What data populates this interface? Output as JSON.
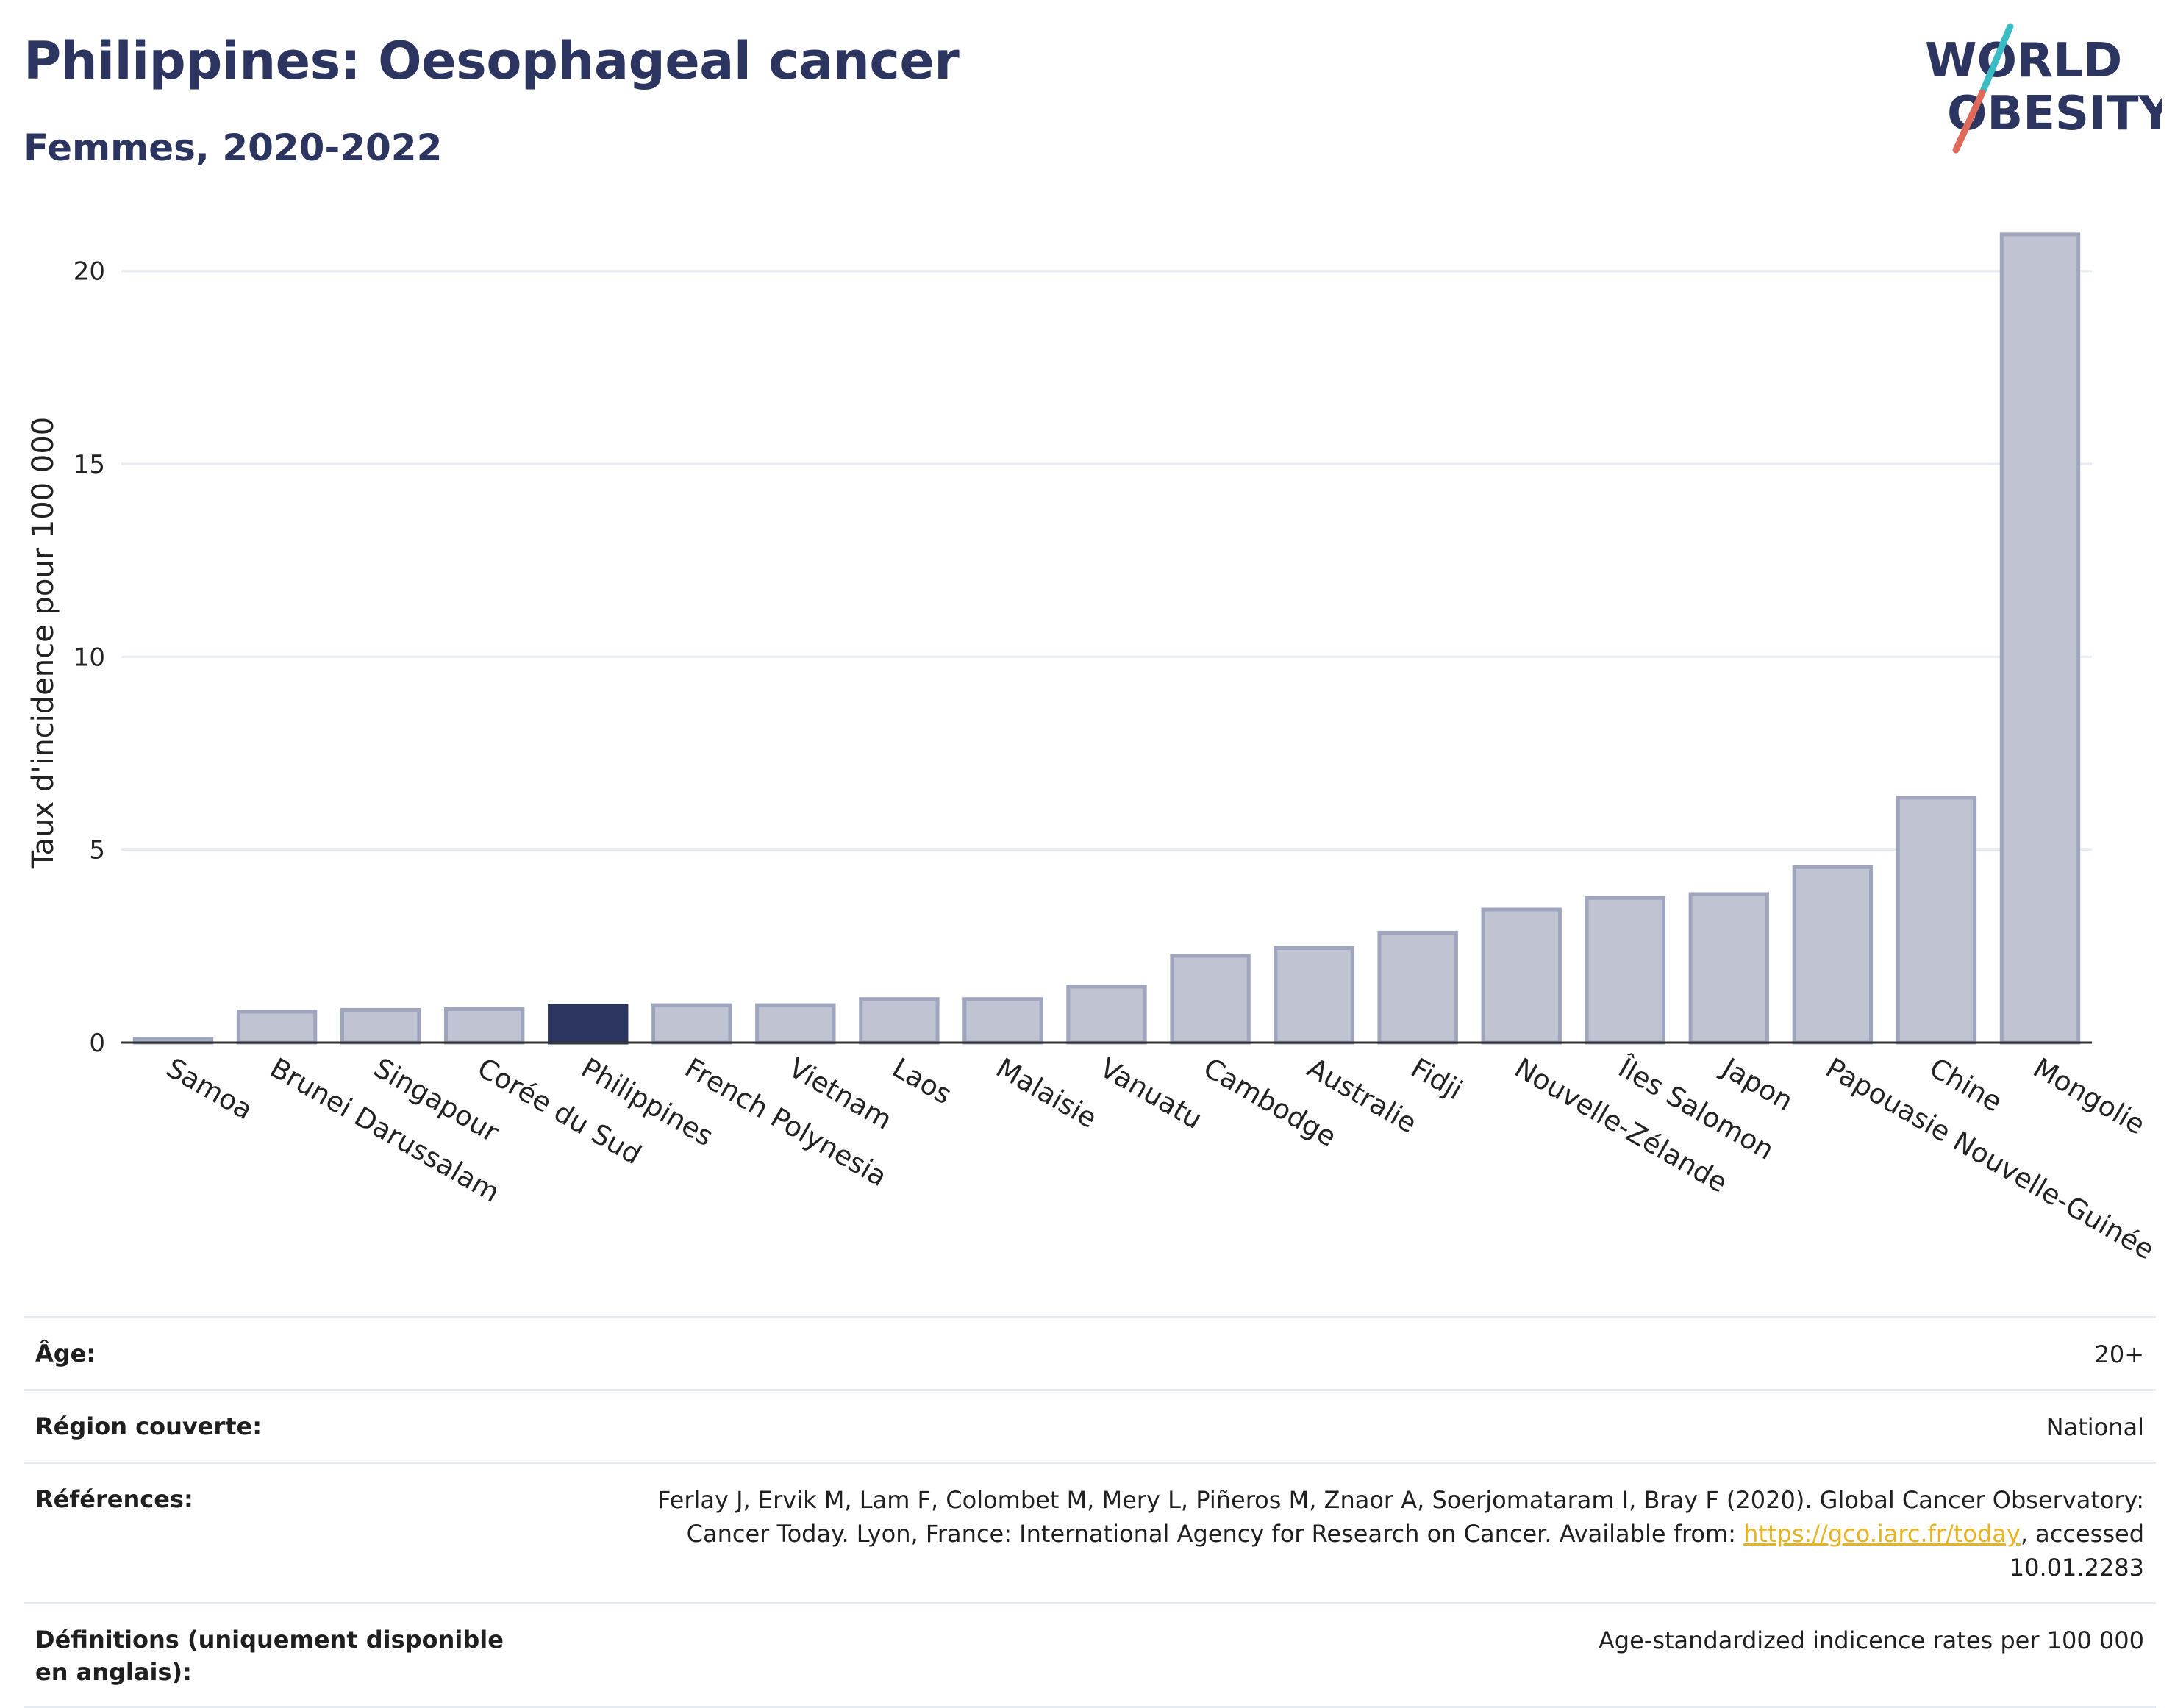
{
  "header": {
    "title": "Philippines: Oesophageal cancer",
    "subtitle": "Femmes, 2020-2022",
    "logo_text_1": "WORLD",
    "logo_text_2": "OBESITY"
  },
  "colors": {
    "title": "#2b3560",
    "bar_default": "#bfc3d2",
    "bar_default_stroke": "#9fa5bd",
    "bar_highlight": "#2b3560",
    "grid": "#e6ebf2",
    "link": "#e6b422",
    "logo_slash_teal": "#3bbcc4",
    "logo_slash_red": "#e06a5a"
  },
  "chart_data": {
    "type": "bar",
    "title": "Philippines: Oesophageal cancer",
    "subtitle": "Femmes, 2020-2022",
    "xlabel": "",
    "ylabel": "Taux d'incidence pour 100 000",
    "ylim": [
      0,
      21.5
    ],
    "yticks": [
      0,
      5,
      10,
      15,
      20
    ],
    "grid": true,
    "highlight": "Philippines",
    "categories": [
      "Samoa",
      "Brunei Darussalam",
      "Singapour",
      "Corée du Sud",
      "Philippines",
      "French Polynesia",
      "Vietnam",
      "Laos",
      "Malaisie",
      "Vanuatu",
      "Cambodge",
      "Australie",
      "Fidji",
      "Nouvelle-Zélande",
      "Îles Salomon",
      "Japon",
      "Papouasie Nouvelle-Guinée",
      "Chine",
      "Mongolie"
    ],
    "values": [
      0.1,
      0.8,
      0.85,
      0.87,
      0.95,
      0.97,
      0.97,
      1.13,
      1.13,
      1.45,
      2.25,
      2.45,
      2.85,
      3.45,
      3.75,
      3.85,
      4.55,
      6.35,
      20.95
    ]
  },
  "meta": [
    {
      "key": "Âge:",
      "value": "20+"
    },
    {
      "key": "Région couverte:",
      "value": "National"
    },
    {
      "key": "Références:",
      "value_pre": "Ferlay J, Ervik M, Lam F, Colombet M, Mery L, Piñeros M, Znaor A, Soerjomataram I, Bray F (2020). Global Cancer Observatory: Cancer Today. Lyon, France: International Agency for Research on Cancer. Available from: ",
      "link": "https://gco.iarc.fr/today",
      "value_post": ", accessed 10.01.2283"
    },
    {
      "key": "Définitions (uniquement disponible en anglais):",
      "value": "Age-standardized indicence rates per 100 000"
    }
  ]
}
